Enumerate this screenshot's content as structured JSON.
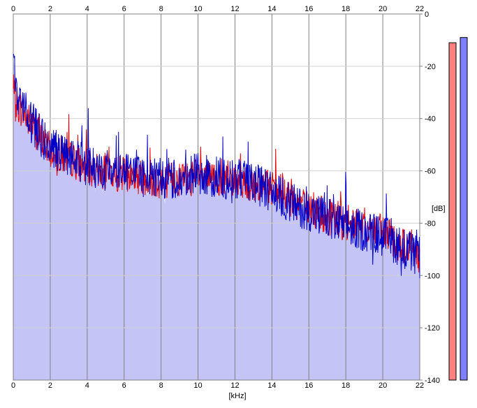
{
  "chart_data": {
    "type": "line",
    "xlabel": "[kHz]",
    "ylabel": "[dB]",
    "xlim": [
      0,
      22
    ],
    "ylim": [
      -140,
      0
    ],
    "x_ticks": [
      "0",
      "2",
      "4",
      "6",
      "8",
      "10",
      "12",
      "14",
      "16",
      "18",
      "20",
      "22"
    ],
    "y_ticks": [
      "0",
      "-20",
      "-40",
      "-60",
      "-80",
      "-100",
      "-120",
      "-140"
    ],
    "grid": true,
    "colors": {
      "fill": "#c4c4f7",
      "red_series": "#e80000",
      "blue_series": "#0000c8",
      "grid": "#808080",
      "meter_left": "#ff8080",
      "meter_right": "#8080ff"
    },
    "series": [
      {
        "color": "#e80000",
        "x": [
          0.0,
          0.25,
          0.5,
          0.75,
          1.0,
          1.25,
          1.5,
          1.75,
          2.0,
          2.5,
          3.0,
          3.5,
          4.0,
          4.5,
          5.0,
          5.5,
          6.0,
          6.5,
          7.0,
          7.5,
          8.0,
          8.5,
          9.0,
          9.5,
          10.0,
          10.5,
          11.0,
          11.5,
          12.0,
          12.5,
          13.0,
          13.5,
          14.0,
          14.5,
          15.0,
          15.5,
          16.0,
          16.5,
          17.0,
          17.5,
          18.0,
          18.5,
          19.0,
          19.5,
          20.0,
          20.5,
          21.0,
          21.5,
          22.0
        ],
        "values": [
          -30,
          -35,
          -37,
          -40,
          -42,
          -45,
          -48,
          -50,
          -52,
          -54,
          -55,
          -57,
          -59,
          -60,
          -60,
          -61,
          -61,
          -62,
          -62,
          -63,
          -64,
          -63,
          -63,
          -63,
          -62,
          -63,
          -63,
          -64,
          -63,
          -64,
          -65,
          -66,
          -67,
          -69,
          -71,
          -73,
          -74,
          -76,
          -77,
          -79,
          -80,
          -80,
          -81,
          -82,
          -84,
          -86,
          -88,
          -90,
          -93
        ]
      },
      {
        "color": "#0000c8",
        "x": [
          0.0,
          0.25,
          0.5,
          0.75,
          1.0,
          1.25,
          1.5,
          1.75,
          2.0,
          2.5,
          3.0,
          3.5,
          4.0,
          4.5,
          5.0,
          5.5,
          6.0,
          6.5,
          7.0,
          7.5,
          8.0,
          8.5,
          9.0,
          9.5,
          10.0,
          10.5,
          11.0,
          11.5,
          12.0,
          12.5,
          13.0,
          13.5,
          14.0,
          14.5,
          15.0,
          15.5,
          16.0,
          16.5,
          17.0,
          17.5,
          18.0,
          18.5,
          19.0,
          19.5,
          20.0,
          20.5,
          21.0,
          21.5,
          22.0
        ],
        "values": [
          -20,
          -32,
          -36,
          -38,
          -42,
          -44,
          -47,
          -49,
          -51,
          -53,
          -55,
          -56,
          -58,
          -59,
          -60,
          -60,
          -61,
          -61,
          -62,
          -62,
          -63,
          -63,
          -62,
          -62,
          -61,
          -62,
          -62,
          -63,
          -63,
          -64,
          -65,
          -66,
          -68,
          -70,
          -72,
          -74,
          -75,
          -77,
          -78,
          -80,
          -81,
          -82,
          -83,
          -84,
          -85,
          -87,
          -89,
          -91,
          -94
        ]
      }
    ]
  },
  "meters": {
    "left_level_db": -11,
    "right_level_db": -9
  }
}
